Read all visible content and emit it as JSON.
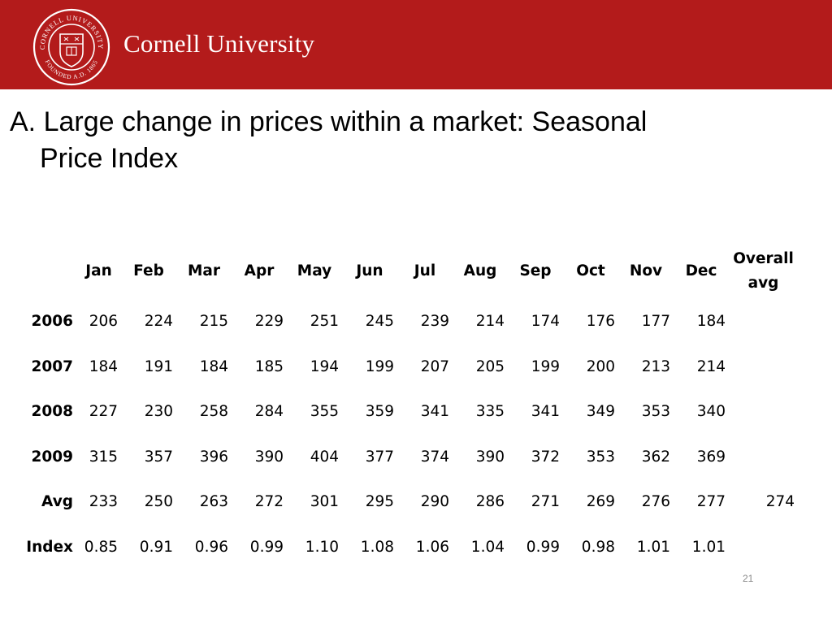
{
  "header": {
    "brand_name": "Cornell University",
    "seal_text_top": "CORNELL UNIVERSITY",
    "seal_text_bottom": "FOUNDED A.D. 1865",
    "banner_color": "#b31b1b"
  },
  "slide": {
    "title_line1": "A. Large change in prices within a market: Seasonal",
    "title_line2": "Price Index",
    "page_number": "21"
  },
  "table": {
    "columns": [
      "Jan",
      "Feb",
      "Mar",
      "Apr",
      "May",
      "Jun",
      "Jul",
      "Aug",
      "Sep",
      "Oct",
      "Nov",
      "Dec"
    ],
    "overall_line1": "Overall",
    "overall_line2": "avg",
    "rows": [
      {
        "label": "2006",
        "values": [
          "206",
          "224",
          "215",
          "229",
          "251",
          "245",
          "239",
          "214",
          "174",
          "176",
          "177",
          "184"
        ],
        "overall": ""
      },
      {
        "label": "2007",
        "values": [
          "184",
          "191",
          "184",
          "185",
          "194",
          "199",
          "207",
          "205",
          "199",
          "200",
          "213",
          "214"
        ],
        "overall": ""
      },
      {
        "label": "2008",
        "values": [
          "227",
          "230",
          "258",
          "284",
          "355",
          "359",
          "341",
          "335",
          "341",
          "349",
          "353",
          "340"
        ],
        "overall": ""
      },
      {
        "label": "2009",
        "values": [
          "315",
          "357",
          "396",
          "390",
          "404",
          "377",
          "374",
          "390",
          "372",
          "353",
          "362",
          "369"
        ],
        "overall": ""
      },
      {
        "label": "Avg",
        "values": [
          "233",
          "250",
          "263",
          "272",
          "301",
          "295",
          "290",
          "286",
          "271",
          "269",
          "276",
          "277"
        ],
        "overall": "274"
      },
      {
        "label": "Index",
        "values": [
          "0.85",
          "0.91",
          "0.96",
          "0.99",
          "1.10",
          "1.08",
          "1.06",
          "1.04",
          "0.99",
          "0.98",
          "1.01",
          "1.01"
        ],
        "overall": ""
      }
    ]
  }
}
